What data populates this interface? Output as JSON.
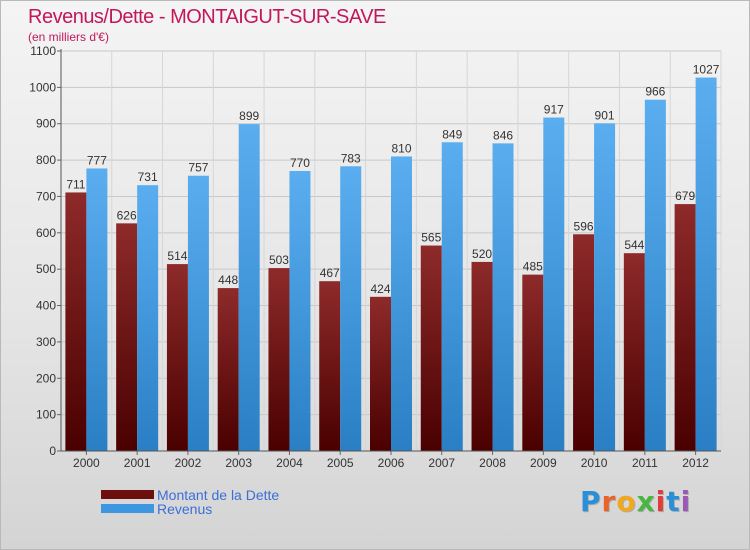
{
  "header": {
    "title": "Revenus/Dette - MONTAIGUT-SUR-SAVE",
    "subtitle": "(en milliers d'€)"
  },
  "chart_data": {
    "type": "bar",
    "categories": [
      "2000",
      "2001",
      "2002",
      "2003",
      "2004",
      "2005",
      "2006",
      "2007",
      "2008",
      "2009",
      "2010",
      "2011",
      "2012"
    ],
    "series": [
      {
        "name": "Montant de la Dette",
        "values": [
          711,
          626,
          514,
          448,
          503,
          467,
          424,
          565,
          520,
          485,
          596,
          544,
          679
        ],
        "color": "#7b1a1a"
      },
      {
        "name": "Revenus",
        "values": [
          777,
          731,
          757,
          899,
          770,
          783,
          810,
          849,
          846,
          917,
          901,
          966,
          1027
        ],
        "color": "#4aa3e8"
      }
    ],
    "yticks": [
      "0",
      "100",
      "200",
      "300",
      "400",
      "500",
      "600",
      "700",
      "800",
      "900",
      "1000",
      "1100"
    ],
    "ylim": [
      0,
      1100
    ],
    "grid": true,
    "legend": "bottom-left"
  },
  "legend": {
    "items": [
      {
        "label": "Montant de la Dette",
        "color": "#6e0f0f"
      },
      {
        "label": "Revenus",
        "color": "#3d97e0"
      }
    ]
  },
  "logo": {
    "letters": [
      "P",
      "r",
      "o",
      "x",
      "i",
      "t",
      "i"
    ],
    "colors": [
      "#2a8fd8",
      "#e8642a",
      "#f2a81d",
      "#4bb543",
      "#e23b3b",
      "#2a8fd8",
      "#9b59b6"
    ]
  }
}
